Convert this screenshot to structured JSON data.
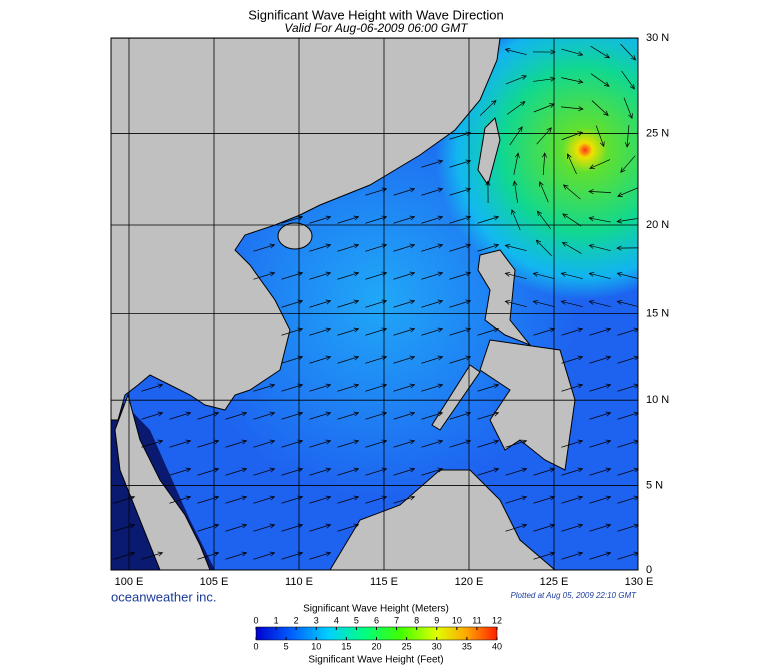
{
  "title": "Significant Wave Height with Wave Direction",
  "subtitle": "Valid For Aug-06-2009 06:00 GMT",
  "map": {
    "lon_ticks": [
      {
        "value": 100,
        "label": "100 E"
      },
      {
        "value": 105,
        "label": "105 E"
      },
      {
        "value": 110,
        "label": "110 E"
      },
      {
        "value": 115,
        "label": "115 E"
      },
      {
        "value": 120,
        "label": "120 E"
      },
      {
        "value": 125,
        "label": "125 E"
      },
      {
        "value": 130,
        "label": "130 E"
      }
    ],
    "lat_ticks": [
      0,
      {
        "value": 5,
        "label": "5 N"
      },
      {
        "value": 10,
        "label": "10 N"
      },
      {
        "value": 15,
        "label": "15 N"
      },
      {
        "value": 20,
        "label": "20 N"
      },
      {
        "value": 25,
        "label": "25 N"
      },
      {
        "value": 30,
        "label": "30 N"
      }
    ]
  },
  "brand": "oceanweather inc.",
  "plotted": "Plotted at Aug 05, 2009 22:10 GMT",
  "colorbar": {
    "meters_title": "Significant Wave Height (Meters)",
    "meters_ticks": [
      0,
      1,
      2,
      3,
      4,
      5,
      6,
      7,
      8,
      9,
      10,
      11,
      12
    ],
    "feet_title": "Significant Wave Height (Feet)",
    "feet_ticks": [
      0,
      5,
      10,
      15,
      20,
      25,
      30,
      35,
      40
    ]
  }
}
